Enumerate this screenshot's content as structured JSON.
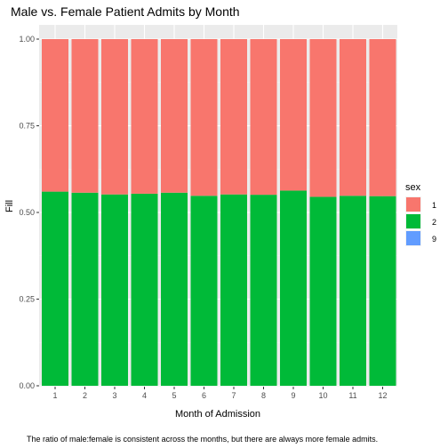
{
  "chart_data": {
    "type": "bar",
    "stacked": true,
    "position": "fill",
    "title": "Male vs. Female Patient Admits by Month",
    "xlabel": "Month of Admission",
    "ylabel": "Fill",
    "caption": "The ratio of male:female is consistent across the months, but there are always more female admits.",
    "categories": [
      "1",
      "2",
      "3",
      "4",
      "5",
      "6",
      "7",
      "8",
      "9",
      "10",
      "11",
      "12"
    ],
    "yticks": [
      "0.00",
      "0.25",
      "0.50",
      "0.75",
      "1.00"
    ],
    "ylim": [
      0,
      1
    ],
    "legend": {
      "title": "sex",
      "placement": "right"
    },
    "series": [
      {
        "name": "1",
        "color": "#F8766D",
        "values": [
          0.44,
          0.443,
          0.448,
          0.446,
          0.443,
          0.452,
          0.448,
          0.449,
          0.437,
          0.455,
          0.452,
          0.453
        ]
      },
      {
        "name": "2",
        "color": "#00BA38",
        "values": [
          0.56,
          0.557,
          0.552,
          0.554,
          0.557,
          0.548,
          0.552,
          0.551,
          0.563,
          0.545,
          0.548,
          0.547
        ]
      },
      {
        "name": "9",
        "color": "#619CFF",
        "values": [
          0,
          0,
          0,
          0,
          0,
          0,
          0,
          0,
          0,
          0,
          0,
          0
        ]
      }
    ],
    "grid": true,
    "panel_background": "#EBEBEB"
  }
}
